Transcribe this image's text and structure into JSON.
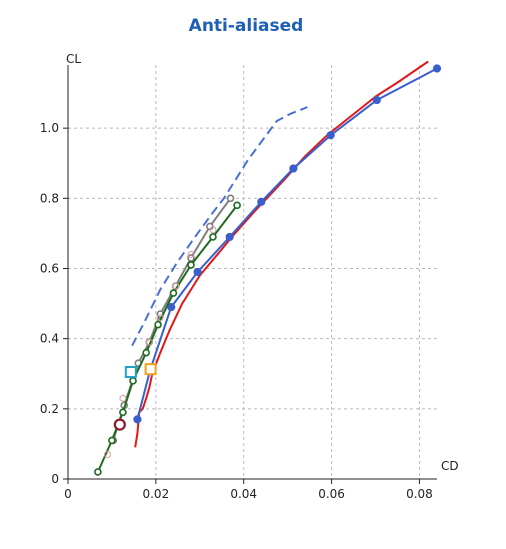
{
  "chart_data": {
    "type": "line",
    "title": "Anti-aliased",
    "xlabel": "CD",
    "ylabel": "CL",
    "xlim": [
      0,
      0.084
    ],
    "ylim": [
      0,
      1.18
    ],
    "grid": true,
    "xticks": [
      0,
      0.02,
      0.04,
      0.06,
      0.08
    ],
    "xtick_labels": [
      "0",
      "0.02",
      "0.04",
      "0.06",
      "0.08"
    ],
    "yticks": [
      0,
      0.2,
      0.4,
      0.6,
      0.8,
      1.0
    ],
    "ytick_labels": [
      "0",
      "0.2",
      "0.4",
      "0.6",
      "0.8",
      "1.0"
    ],
    "series": [
      {
        "color": "#4a6fd6",
        "style": "dashed",
        "marker": "none",
        "x": [
          0.0146,
          0.0175,
          0.021,
          0.025,
          0.0295,
          0.033,
          0.0355,
          0.038,
          0.041,
          0.0475,
          0.0505,
          0.0545
        ],
        "y": [
          0.38,
          0.45,
          0.54,
          0.62,
          0.7,
          0.76,
          0.8,
          0.85,
          0.91,
          1.02,
          1.04,
          1.06
        ]
      },
      {
        "color": "#e01818",
        "style": "solid",
        "marker": "none",
        "x": [
          0.0153,
          0.0158,
          0.016,
          0.0162,
          0.017,
          0.0178,
          0.0185,
          0.0192,
          0.021,
          0.023,
          0.026,
          0.03,
          0.034,
          0.038,
          0.043,
          0.049,
          0.054,
          0.059,
          0.063,
          0.07,
          0.075,
          0.082
        ],
        "y": [
          0.09,
          0.13,
          0.16,
          0.19,
          0.2,
          0.23,
          0.26,
          0.3,
          0.36,
          0.42,
          0.5,
          0.58,
          0.64,
          0.7,
          0.77,
          0.85,
          0.92,
          0.98,
          1.02,
          1.09,
          1.13,
          1.19
        ]
      },
      {
        "color": "#3a5fcd",
        "style": "solid",
        "marker": "filled-circle",
        "x": [
          0.0158,
          0.0187,
          0.0235,
          0.0295,
          0.0368,
          0.044,
          0.0513,
          0.0598,
          0.0703,
          0.084
        ],
        "y": [
          0.17,
          0.31,
          0.49,
          0.59,
          0.69,
          0.79,
          0.885,
          0.98,
          1.08,
          1.17
        ]
      },
      {
        "color": "#7f7f7f",
        "style": "solid",
        "marker": "open-circle",
        "x": [
          0.0103,
          0.0128,
          0.016,
          0.0185,
          0.021,
          0.0245,
          0.028,
          0.0323,
          0.037
        ],
        "y": [
          0.11,
          0.21,
          0.33,
          0.39,
          0.47,
          0.55,
          0.63,
          0.72,
          0.8
        ]
      },
      {
        "color": "#1e6b1e",
        "style": "solid",
        "marker": "open-circle",
        "x": [
          0.0068,
          0.01,
          0.0125,
          0.0148,
          0.0178,
          0.0205,
          0.024,
          0.028,
          0.033,
          0.0385
        ],
        "y": [
          0.02,
          0.11,
          0.19,
          0.28,
          0.36,
          0.44,
          0.53,
          0.61,
          0.69,
          0.78
        ]
      }
    ],
    "scatter_points": [
      {
        "x": 0.009,
        "y": 0.07,
        "color": "#d49aa0",
        "size": 3
      },
      {
        "x": 0.0125,
        "y": 0.23,
        "color": "#d49aa0",
        "size": 3
      },
      {
        "x": 0.0185,
        "y": 0.39,
        "color": "#d49aa0",
        "size": 3
      },
      {
        "x": 0.021,
        "y": 0.46,
        "color": "#d49aa0",
        "size": 3
      },
      {
        "x": 0.0245,
        "y": 0.55,
        "color": "#d49aa0",
        "size": 3
      },
      {
        "x": 0.028,
        "y": 0.64,
        "color": "#d49aa0",
        "size": 3
      },
      {
        "x": 0.033,
        "y": 0.71,
        "color": "#d49aa0",
        "size": 3
      }
    ],
    "special_markers": [
      {
        "shape": "open-square",
        "x": 0.0143,
        "y": 0.305,
        "color": "#1fa3c9"
      },
      {
        "shape": "open-square",
        "x": 0.0188,
        "y": 0.313,
        "color": "#f0a020"
      },
      {
        "shape": "open-circle",
        "x": 0.0118,
        "y": 0.155,
        "color": "#8b1a2a"
      }
    ]
  }
}
